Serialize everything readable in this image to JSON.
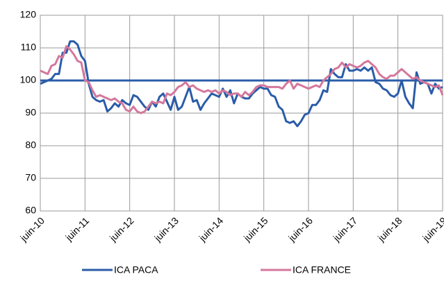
{
  "chart_data": {
    "type": "line",
    "categories": [
      "juin-10",
      null,
      null,
      null,
      null,
      null,
      null,
      null,
      null,
      null,
      null,
      null,
      "juin-11",
      null,
      null,
      null,
      null,
      null,
      null,
      null,
      null,
      null,
      null,
      null,
      "juin-12",
      null,
      null,
      null,
      null,
      null,
      null,
      null,
      null,
      null,
      null,
      null,
      "juin-13",
      null,
      null,
      null,
      null,
      null,
      null,
      null,
      null,
      null,
      null,
      null,
      "juin-14",
      null,
      null,
      null,
      null,
      null,
      null,
      null,
      null,
      null,
      null,
      null,
      "juin-15",
      null,
      null,
      null,
      null,
      null,
      null,
      null,
      null,
      null,
      null,
      null,
      "juin-16",
      null,
      null,
      null,
      null,
      null,
      null,
      null,
      null,
      null,
      null,
      null,
      "juin-17",
      null,
      null,
      null,
      null,
      null,
      null,
      null,
      null,
      null,
      null,
      null,
      "juin-18",
      null,
      null,
      null,
      null,
      null,
      null,
      null,
      null,
      null,
      null,
      null,
      "juin-19"
    ],
    "series": [
      {
        "name": "ICA PACA",
        "color": "#2a5ca8",
        "values": [
          99,
          99.5,
          100,
          100.5,
          102,
          102,
          108.5,
          108.5,
          112,
          112,
          111,
          107.5,
          106,
          99,
          95,
          94,
          93.5,
          94,
          90.5,
          91.5,
          93,
          92,
          94,
          93,
          92.5,
          95.5,
          95,
          93.5,
          92,
          91,
          93.5,
          92,
          95,
          96,
          93.5,
          91,
          95,
          91,
          92,
          95,
          98,
          93.5,
          94,
          91,
          93,
          94.5,
          96,
          95.5,
          95,
          97.5,
          95,
          97,
          93,
          96,
          95,
          94.5,
          94.5,
          96,
          97,
          98,
          97.5,
          97.5,
          95.5,
          95,
          92,
          91,
          87.5,
          87,
          87.5,
          86,
          87.5,
          89.5,
          90,
          92.5,
          92.5,
          94,
          97,
          96.5,
          103.5,
          102,
          101,
          101,
          105,
          103,
          103,
          103.5,
          103,
          104,
          103,
          104,
          99.5,
          99,
          97.5,
          97,
          95.5,
          95,
          96,
          100,
          95,
          93,
          91.5,
          102.5,
          99,
          99.5,
          99,
          96,
          99,
          97.5,
          98
        ]
      },
      {
        "name": "ICA FRANCE",
        "color": "#d4779c",
        "values": [
          103,
          102.5,
          102,
          104.5,
          105,
          107.5,
          107,
          110.5,
          109.5,
          108,
          106,
          105.5,
          100,
          99.5,
          97,
          95,
          95.5,
          95,
          94.5,
          94,
          94.5,
          93.5,
          93,
          91,
          90.5,
          92,
          90.5,
          90,
          90.5,
          92,
          93.5,
          93,
          93.5,
          93,
          96,
          95.5,
          96.5,
          98,
          98.5,
          99.5,
          98,
          98.5,
          97.5,
          97,
          96.5,
          97,
          96.5,
          97,
          96,
          97,
          96.5,
          95.5,
          96,
          96,
          95,
          96.5,
          95.5,
          96.5,
          98,
          98.5,
          98.5,
          98,
          98,
          98,
          98,
          97.5,
          99,
          100,
          97.5,
          99,
          98.5,
          98,
          97.5,
          98,
          98.5,
          98,
          100,
          101,
          102,
          103.5,
          104,
          105.5,
          104,
          105,
          104.5,
          104,
          104.5,
          105.5,
          106,
          105,
          104,
          102,
          101,
          100.5,
          101.5,
          101.5,
          102.5,
          103.5,
          102.5,
          101.5,
          100.5,
          101,
          100,
          99.5,
          99,
          98.5,
          98,
          98.5,
          95.5
        ]
      }
    ],
    "reference_line": {
      "value": 100,
      "color": "#2a5ca8"
    },
    "ylim": [
      60,
      120
    ],
    "yticks": [
      60,
      70,
      80,
      90,
      100,
      110,
      120
    ],
    "grid": true,
    "legend": "bottom"
  }
}
